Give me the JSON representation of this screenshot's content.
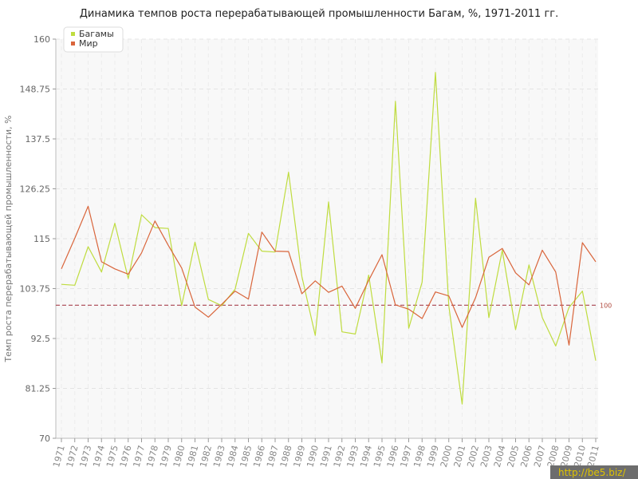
{
  "chart_data": {
    "type": "line",
    "title": "Динамика темпов роста перерабатывающей промышленности Багам, %, 1971-2011 гг.",
    "xlabel": "",
    "ylabel": "Темп роста перерабатывающей промышленности, %",
    "ylim": [
      70,
      160
    ],
    "yticks": [
      "70",
      "81.25",
      "92.5",
      "103.75",
      "115",
      "126.25",
      "137.5",
      "148.75",
      "160"
    ],
    "x": [
      "1971",
      "1972",
      "1973",
      "1974",
      "1975",
      "1976",
      "1977",
      "1978",
      "1979",
      "1980",
      "1981",
      "1982",
      "1983",
      "1984",
      "1985",
      "1986",
      "1987",
      "1988",
      "1989",
      "1990",
      "1991",
      "1992",
      "1993",
      "1994",
      "1995",
      "1996",
      "1997",
      "1998",
      "1999",
      "2000",
      "2001",
      "2002",
      "2003",
      "2004",
      "2005",
      "2006",
      "2007",
      "2008",
      "2009",
      "2010",
      "2011"
    ],
    "series": [
      {
        "name": "Багамы",
        "color": "#bfdc3f",
        "values": [
          104.7,
          104.5,
          113.2,
          107.5,
          118.5,
          106,
          120.4,
          117.5,
          117.3,
          99.9,
          114.2,
          101.3,
          99.9,
          103.6,
          116.2,
          112.2,
          112,
          130,
          106.5,
          93.2,
          123.3,
          94,
          93.5,
          106.8,
          87,
          146,
          94.8,
          105.2,
          152.5,
          99.8,
          77.7,
          124.1,
          97.2,
          112.4,
          94.5,
          109.1,
          97.2,
          90.8,
          99.5,
          103.2,
          87.5
        ]
      },
      {
        "name": "Мир",
        "color": "#d9653b",
        "values": [
          108.2,
          115.1,
          122.3,
          109.8,
          108.2,
          107,
          111.8,
          119,
          113.5,
          108.4,
          99.6,
          97.3,
          100.2,
          103.2,
          101.4,
          116.5,
          112.2,
          112.1,
          102.6,
          105.5,
          102.9,
          104.3,
          99.3,
          105.6,
          111.4,
          100.1,
          99.1,
          97,
          103,
          102.1,
          95,
          101.7,
          110.8,
          112.8,
          107.3,
          104.6,
          112.4,
          107.5,
          91,
          114.1,
          109.8
        ]
      }
    ],
    "reference_line": {
      "value": 100,
      "label": "100",
      "color": "#a8434f"
    },
    "legend": {
      "position": "top-left"
    },
    "grid": true
  },
  "watermark": "http://be5.biz/"
}
